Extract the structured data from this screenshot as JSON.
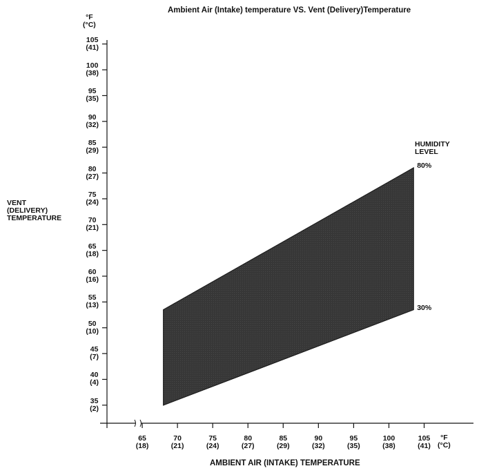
{
  "chart_data": {
    "type": "area",
    "title": "Ambient Air (Intake) temperature VS. Vent (Delivery)Temperature",
    "x_label": "AMBIENT AIR (INTAKE) TEMPERATURE",
    "y_label": "VENT\n(DELIVERY)\nTEMPERATURE",
    "x_unit": "°F\n(°C)",
    "y_unit": "°F\n(°C)",
    "legend_title": "HUMIDITY\nLEVEL",
    "x": [
      68,
      103.5
    ],
    "series": [
      {
        "name": "80%",
        "color": "#3a3a3a",
        "values": [
          53.5,
          81
        ]
      },
      {
        "name": "30%",
        "color": "#3a3a3a",
        "values": [
          35,
          53.5
        ]
      }
    ],
    "xlim": [
      60,
      112
    ],
    "ylim": [
      31.5,
      105.5
    ],
    "xticks": [
      {
        "value": 65,
        "label": "65\n(18)"
      },
      {
        "value": 70,
        "label": "70\n(21)"
      },
      {
        "value": 75,
        "label": "75\n(24)"
      },
      {
        "value": 80,
        "label": "80\n(27)"
      },
      {
        "value": 85,
        "label": "85\n(29)"
      },
      {
        "value": 90,
        "label": "90\n(32)"
      },
      {
        "value": 95,
        "label": "95\n(35)"
      },
      {
        "value": 100,
        "label": "100\n(38)"
      },
      {
        "value": 105,
        "label": "105\n(41)"
      }
    ],
    "yticks": [
      {
        "value": 105,
        "label": "105\n(41)"
      },
      {
        "value": 100,
        "label": "100\n(38)"
      },
      {
        "value": 95,
        "label": "95\n(35)"
      },
      {
        "value": 90,
        "label": "90\n(32)"
      },
      {
        "value": 85,
        "label": "85\n(29)"
      },
      {
        "value": 80,
        "label": "80\n(27)"
      },
      {
        "value": 75,
        "label": "75\n(24)"
      },
      {
        "value": 70,
        "label": "70\n(21)"
      },
      {
        "value": 65,
        "label": "65\n(18)"
      },
      {
        "value": 60,
        "label": "60\n(16)"
      },
      {
        "value": 55,
        "label": "55\n(13)"
      },
      {
        "value": 50,
        "label": "50\n(10)"
      },
      {
        "value": 45,
        "label": "45\n(7)"
      },
      {
        "value": 40,
        "label": "40\n(4)"
      },
      {
        "value": 35,
        "label": "35\n(2)"
      }
    ],
    "grid": false
  }
}
